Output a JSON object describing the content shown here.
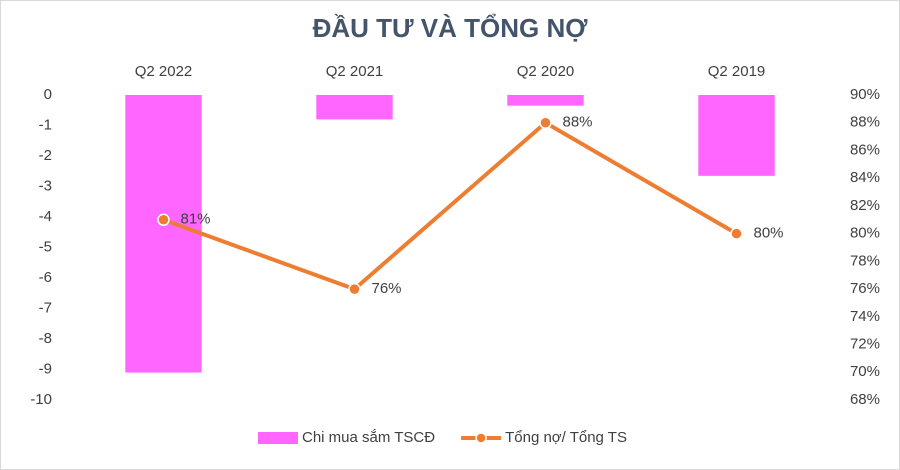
{
  "chart_data": {
    "type": "combo",
    "title": "ĐẦU TƯ VÀ TỔNG NỢ",
    "categories": [
      "Q2 2022",
      "Q2 2021",
      "Q2 2020",
      "Q2 2019"
    ],
    "series": [
      {
        "name": "Chi mua sắm TSCĐ",
        "type": "bar",
        "color": "#ff66ff",
        "axis": "y",
        "values": [
          -9.1,
          -0.8,
          -0.35,
          -2.65
        ]
      },
      {
        "name": "Tổng nợ/ Tổng TS",
        "type": "line",
        "color": "#ed7d31",
        "axis": "y2",
        "values": [
          81,
          76,
          88,
          80
        ],
        "value_labels": [
          "81%",
          "76%",
          "88%",
          "80%"
        ]
      }
    ],
    "ylim": [
      -10,
      0
    ],
    "yticks": [
      0,
      -1,
      -2,
      -3,
      -4,
      -5,
      -6,
      -7,
      -8,
      -9,
      -10
    ],
    "y2lim": [
      68,
      90
    ],
    "y2ticks": [
      {
        "value": 90,
        "label": "90%"
      },
      {
        "value": 88,
        "label": "88%"
      },
      {
        "value": 86,
        "label": "86%"
      },
      {
        "value": 84,
        "label": "84%"
      },
      {
        "value": 82,
        "label": "82%"
      },
      {
        "value": 80,
        "label": "80%"
      },
      {
        "value": 78,
        "label": "78%"
      },
      {
        "value": 76,
        "label": "76%"
      },
      {
        "value": 74,
        "label": "74%"
      },
      {
        "value": 72,
        "label": "72%"
      },
      {
        "value": 70,
        "label": "70%"
      },
      {
        "value": 68,
        "label": "68%"
      }
    ],
    "legend": "bottom"
  }
}
